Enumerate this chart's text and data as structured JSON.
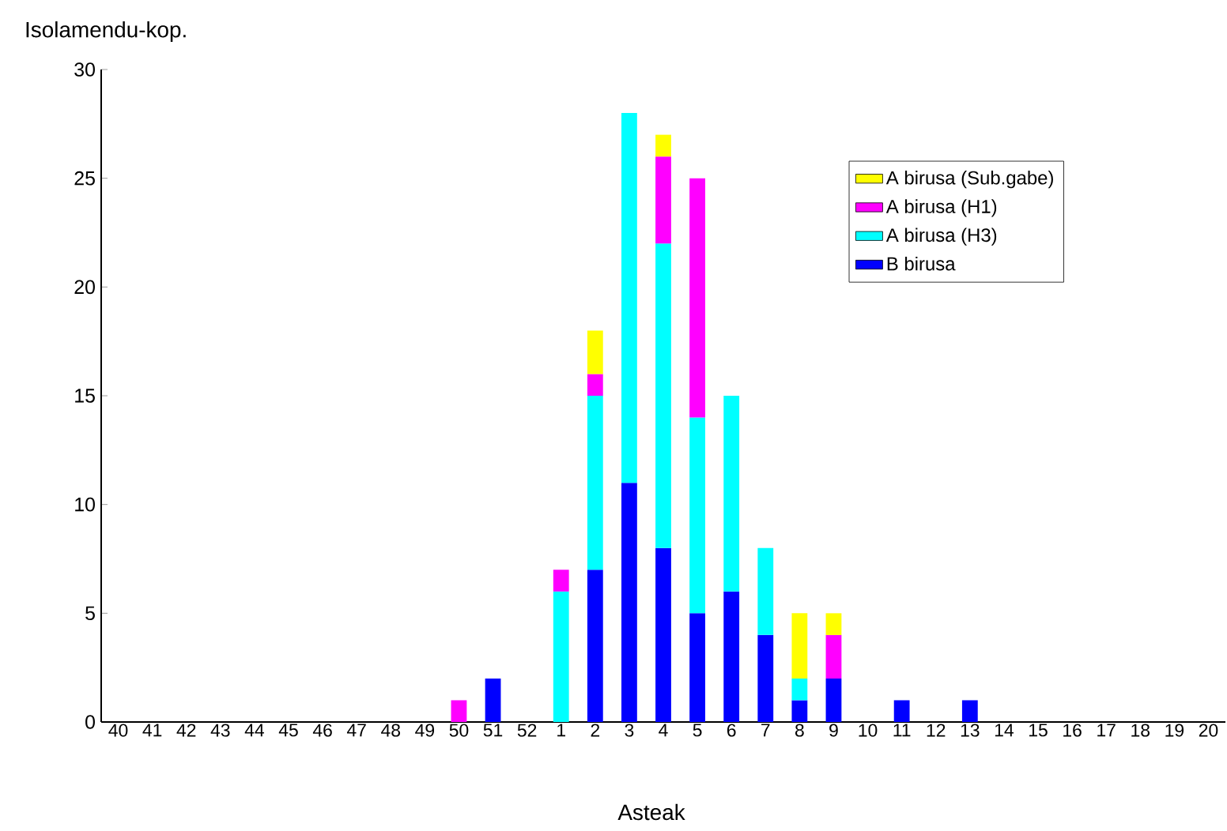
{
  "chart_data": {
    "type": "bar",
    "stacked": true,
    "ylabel": "Isolamendu-kop.",
    "xlabel": "Asteak",
    "categories": [
      "40",
      "41",
      "42",
      "43",
      "44",
      "45",
      "46",
      "47",
      "48",
      "49",
      "50",
      "51",
      "52",
      "1",
      "2",
      "3",
      "4",
      "5",
      "6",
      "7",
      "8",
      "9",
      "10",
      "11",
      "12",
      "13",
      "14",
      "15",
      "16",
      "17",
      "18",
      "19",
      "20"
    ],
    "series": [
      {
        "name": "B birusa",
        "color": "#0000ff",
        "values": [
          null,
          null,
          null,
          null,
          null,
          null,
          null,
          null,
          null,
          null,
          null,
          2,
          null,
          null,
          7,
          11,
          8,
          5,
          6,
          4,
          1,
          2,
          null,
          1,
          null,
          1,
          null,
          null,
          null,
          null,
          null,
          null,
          null
        ]
      },
      {
        "name": "A birusa (H3)",
        "color": "#00ffff",
        "values": [
          null,
          null,
          null,
          null,
          null,
          null,
          null,
          null,
          null,
          null,
          null,
          null,
          null,
          6,
          8,
          17,
          14,
          9,
          9,
          4,
          1,
          null,
          null,
          null,
          null,
          null,
          null,
          null,
          null,
          null,
          null,
          null,
          null
        ]
      },
      {
        "name": "A birusa (H1)",
        "color": "#ff00ff",
        "values": [
          null,
          null,
          null,
          null,
          null,
          null,
          null,
          null,
          null,
          null,
          1,
          null,
          null,
          1,
          1,
          null,
          4,
          11,
          null,
          null,
          null,
          2,
          null,
          null,
          null,
          null,
          null,
          null,
          null,
          null,
          null,
          null,
          null
        ]
      },
      {
        "name": "A birusa (Sub.gabe)",
        "color": "#ffff00",
        "values": [
          null,
          null,
          null,
          null,
          null,
          null,
          null,
          null,
          null,
          null,
          null,
          null,
          null,
          null,
          2,
          null,
          1,
          null,
          null,
          null,
          3,
          1,
          null,
          null,
          null,
          null,
          null,
          null,
          null,
          null,
          null,
          null,
          null
        ]
      }
    ],
    "ylim": [
      0,
      30
    ],
    "yticks": [
      0,
      5,
      10,
      15,
      20,
      25,
      30
    ],
    "grid": false,
    "legend": "top right"
  }
}
